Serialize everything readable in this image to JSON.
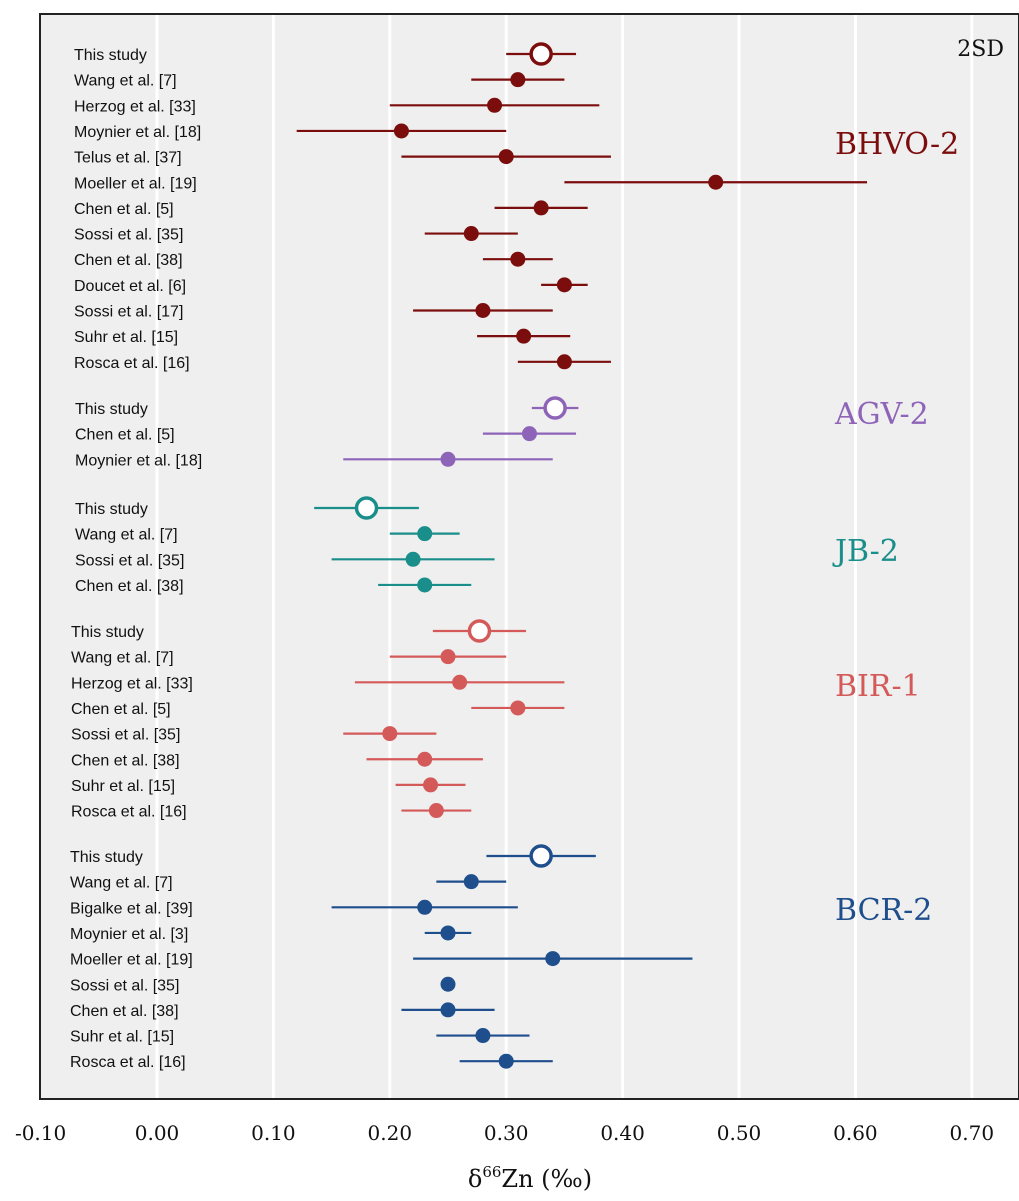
{
  "chart_data": {
    "type": "scatter",
    "subtype": "error-bar dot plot",
    "title": "",
    "xlabel_prefix": "δ",
    "xlabel_sup": "66",
    "xlabel_suffix": "Zn (‰)",
    "xlim": [
      -0.1,
      0.7
    ],
    "xticks": [
      -0.1,
      0.0,
      0.1,
      0.2,
      0.3,
      0.4,
      0.5,
      0.6,
      0.7
    ],
    "xtick_labels": [
      "-0.10",
      "0.00",
      "0.10",
      "0.20",
      "0.30",
      "0.40",
      "0.50",
      "0.60",
      "0.70"
    ],
    "grid": "vertical",
    "annotation": "2SD",
    "groups": [
      {
        "name": "BHVO-2",
        "color": "#7b0d0d",
        "entries": [
          {
            "label": "This study",
            "value": 0.33,
            "err": 0.03,
            "open": true
          },
          {
            "label": "Wang et al. [7]",
            "value": 0.31,
            "err": 0.04
          },
          {
            "label": "Herzog et al. [33]",
            "value": 0.29,
            "err": 0.09
          },
          {
            "label": "Moynier et al. [18]",
            "value": 0.21,
            "err": 0.09
          },
          {
            "label": "Telus et al. [37]",
            "value": 0.3,
            "err": 0.09
          },
          {
            "label": "Moeller et al. [19]",
            "value": 0.48,
            "err": 0.13
          },
          {
            "label": "Chen et al. [5]",
            "value": 0.33,
            "err": 0.04
          },
          {
            "label": "Sossi et al. [35]",
            "value": 0.27,
            "err": 0.04
          },
          {
            "label": "Chen et al. [38]",
            "value": 0.31,
            "err": 0.03
          },
          {
            "label": "Doucet et al. [6]",
            "value": 0.35,
            "err": 0.02
          },
          {
            "label": "Sossi et al. [17]",
            "value": 0.28,
            "err": 0.06
          },
          {
            "label": "Suhr et al. [15]",
            "value": 0.315,
            "err": 0.04
          },
          {
            "label": "Rosca et al. [16]",
            "value": 0.35,
            "err": 0.04
          }
        ]
      },
      {
        "name": "AGV-2",
        "color": "#8e64b8",
        "entries": [
          {
            "label": "This study",
            "value": 0.342,
            "err": 0.02,
            "open": true
          },
          {
            "label": "Chen et al. [5]",
            "value": 0.32,
            "err": 0.04
          },
          {
            "label": "Moynier et al. [18]",
            "value": 0.25,
            "err": 0.09
          }
        ]
      },
      {
        "name": "JB-2",
        "color": "#1a8e8a",
        "entries": [
          {
            "label": "This study",
            "value": 0.18,
            "err": 0.045,
            "open": true
          },
          {
            "label": "Wang et al. [7]",
            "value": 0.23,
            "err": 0.03
          },
          {
            "label": "Sossi et al. [35]",
            "value": 0.22,
            "err": 0.07
          },
          {
            "label": "Chen et al. [38]",
            "value": 0.23,
            "err": 0.04
          }
        ]
      },
      {
        "name": "BIR-1",
        "color": "#d45a5a",
        "entries": [
          {
            "label": "This study",
            "value": 0.277,
            "err": 0.04,
            "open": true
          },
          {
            "label": "Wang et al. [7]",
            "value": 0.25,
            "err": 0.05
          },
          {
            "label": "Herzog et al. [33]",
            "value": 0.26,
            "err": 0.09
          },
          {
            "label": "Chen et al. [5]",
            "value": 0.31,
            "err": 0.04
          },
          {
            "label": "Sossi et al. [35]",
            "value": 0.2,
            "err": 0.04
          },
          {
            "label": "Chen et al. [38]",
            "value": 0.23,
            "err": 0.05
          },
          {
            "label": "Suhr et al. [15]",
            "value": 0.235,
            "err": 0.03
          },
          {
            "label": "Rosca et al. [16]",
            "value": 0.24,
            "err": 0.03
          }
        ]
      },
      {
        "name": "BCR-2",
        "color": "#1f4e8c",
        "entries": [
          {
            "label": "This study",
            "value": 0.33,
            "err": 0.047,
            "open": true
          },
          {
            "label": "Wang et al. [7]",
            "value": 0.27,
            "err": 0.03
          },
          {
            "label": "Bigalke et al. [39]",
            "value": 0.23,
            "err": 0.08
          },
          {
            "label": "Moynier et al. [3]",
            "value": 0.25,
            "err": 0.02
          },
          {
            "label": "Moeller et al. [19]",
            "value": 0.34,
            "err": 0.12
          },
          {
            "label": "Sossi et al. [35]",
            "value": 0.25,
            "err": 0.005
          },
          {
            "label": "Chen et al. [38]",
            "value": 0.25,
            "err": 0.04
          },
          {
            "label": "Suhr et al. [15]",
            "value": 0.28,
            "err": 0.04
          },
          {
            "label": "Rosca et al. [16]",
            "value": 0.3,
            "err": 0.04
          }
        ]
      }
    ]
  }
}
